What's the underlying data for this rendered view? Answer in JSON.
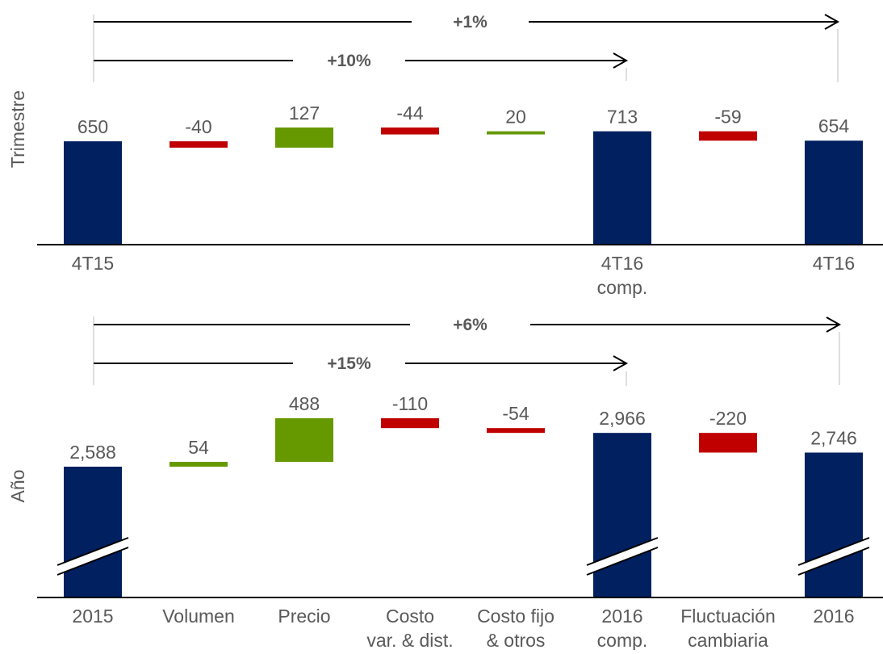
{
  "chart_data": [
    {
      "type": "waterfall",
      "row_label": "Trimestre",
      "categories": [
        "4T15",
        "",
        "",
        "",
        "",
        "4T16\ncomp.",
        "",
        "4T16"
      ],
      "steps": [
        {
          "kind": "total",
          "value": 650,
          "label": "650"
        },
        {
          "kind": "delta",
          "value": -40,
          "label": "-40"
        },
        {
          "kind": "delta",
          "value": 127,
          "label": "127"
        },
        {
          "kind": "delta",
          "value": -44,
          "label": "-44"
        },
        {
          "kind": "delta",
          "value": 20,
          "label": "20"
        },
        {
          "kind": "total",
          "value": 713,
          "label": "713"
        },
        {
          "kind": "delta",
          "value": -59,
          "label": "-59"
        },
        {
          "kind": "total",
          "value": 654,
          "label": "654"
        }
      ],
      "axis_break": false,
      "ylim": [
        0,
        800
      ],
      "comparisons": [
        {
          "label": "+1%",
          "from": 0,
          "to": 7
        },
        {
          "label": "+10%",
          "from": 0,
          "to": 5
        }
      ]
    },
    {
      "type": "waterfall",
      "row_label": "Año",
      "categories": [
        "2015",
        "Volumen",
        "Precio",
        "Costo\nvar. & dist.",
        "Costo fijo\n& otros",
        "2016\ncomp.",
        "Fluctuación\ncambiaria",
        "2016"
      ],
      "steps": [
        {
          "kind": "total",
          "value": 2588,
          "label": "2,588"
        },
        {
          "kind": "delta",
          "value": 54,
          "label": "54"
        },
        {
          "kind": "delta",
          "value": 488,
          "label": "488"
        },
        {
          "kind": "delta",
          "value": -110,
          "label": "-110"
        },
        {
          "kind": "delta",
          "value": -54,
          "label": "-54"
        },
        {
          "kind": "total",
          "value": 2966,
          "label": "2,966"
        },
        {
          "kind": "delta",
          "value": -220,
          "label": "-220"
        },
        {
          "kind": "total",
          "value": 2746,
          "label": "2,746"
        }
      ],
      "axis_break": true,
      "comparisons": [
        {
          "label": "+6%",
          "from": 0,
          "to": 7
        },
        {
          "label": "+15%",
          "from": 0,
          "to": 5
        }
      ]
    }
  ],
  "colors": {
    "total": "#002060",
    "increase": "#669900",
    "decrease": "#C00000",
    "label": "#595959",
    "axis": "#000000",
    "guide": "#BFBFBF"
  }
}
